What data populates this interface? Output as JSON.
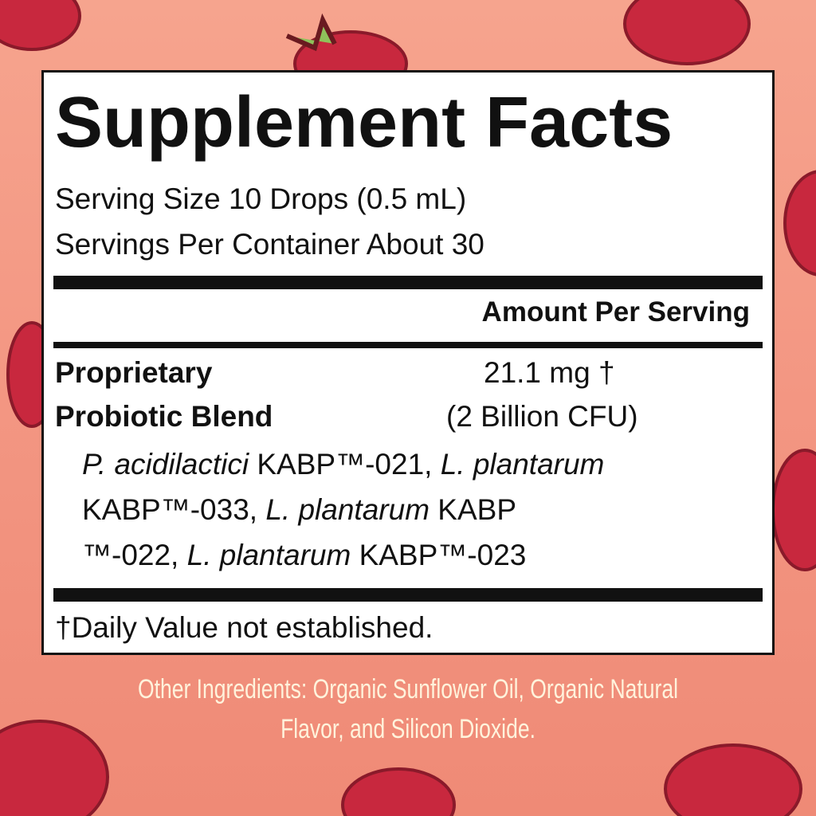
{
  "colors": {
    "background": "#f39682",
    "berry": "#c8283e",
    "berry_outline": "#8a1a2a",
    "panel": "#ffffff",
    "ink": "#111111",
    "other_text": "#fff3dc"
  },
  "label": {
    "title": "Supplement Facts",
    "serving_size": "Serving Size 10 Drops (0.5 mL)",
    "servings_per_container": "Servings Per Container About 30",
    "amount_header": "Amount Per Serving",
    "ingredient": {
      "name_line1": "Proprietary",
      "name_line2": "Probiotic Blend",
      "amount": "21.1 mg †",
      "cfu": "(2 Billion CFU)"
    },
    "strains": [
      {
        "parts": [
          {
            "t": "P. acidilactici",
            "i": true
          },
          {
            "t": " KABP™-021, ",
            "i": false
          },
          {
            "t": "L. plantarum",
            "i": true
          }
        ]
      },
      {
        "parts": [
          {
            "t": "KABP™-033, ",
            "i": false
          },
          {
            "t": "L. plantarum",
            "i": true
          },
          {
            "t": " KABP",
            "i": false
          }
        ]
      },
      {
        "parts": [
          {
            "t": "™-022, ",
            "i": false
          },
          {
            "t": "L. plantarum",
            "i": true
          },
          {
            "t": " KABP™-023",
            "i": false
          }
        ]
      }
    ],
    "footnote": "†Daily Value not established."
  },
  "other_ingredients": {
    "line1": "Other Ingredients: Organic Sunflower Oil, Organic Natural",
    "line2": "Flavor, and Silicon Dioxide."
  },
  "decorations": [
    "raspberry-icon"
  ]
}
